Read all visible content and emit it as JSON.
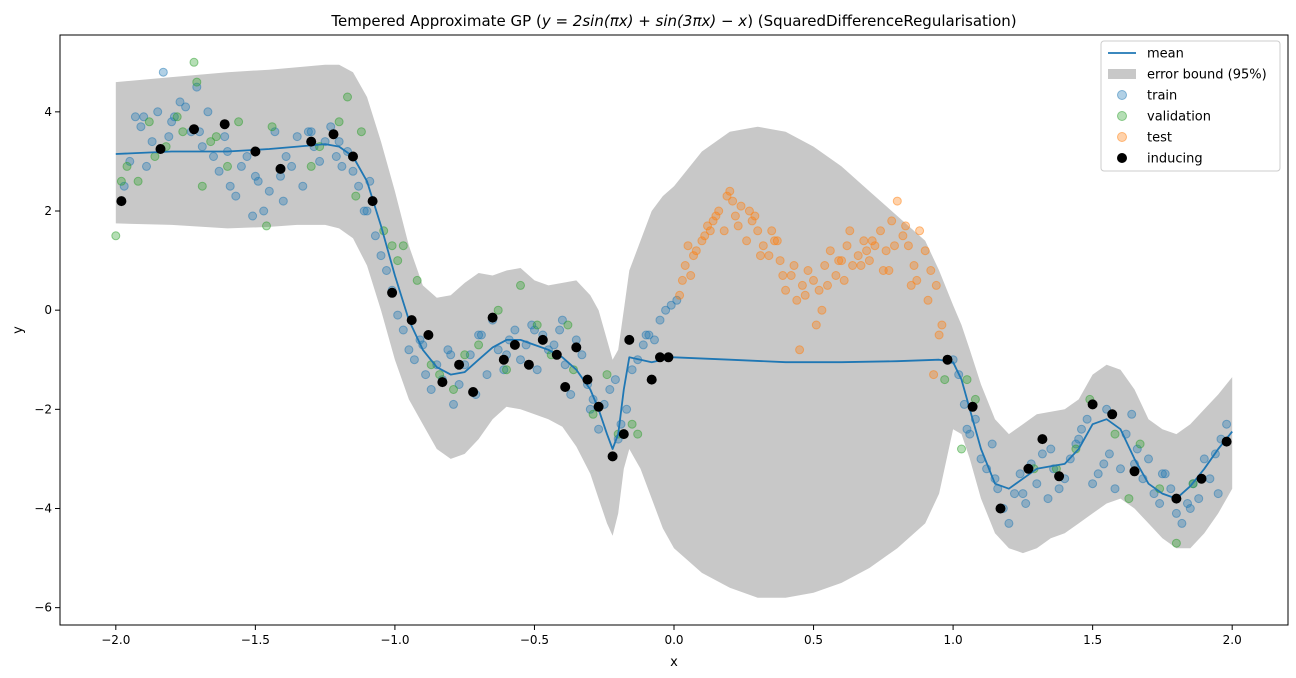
{
  "chart_data": {
    "type": "scatter",
    "title": "Tempered Approximate GP ($y = 2\\sin(\\pi x) + \\sin(3\\pi x) - x$) (SquaredDifferenceRegularisation)",
    "title_parts": {
      "prefix": "Tempered Approximate GP (",
      "equation": "y = 2sin(πx) + sin(3πx) − x",
      "suffix": ") (SquaredDifferenceRegularisation)"
    },
    "xlabel": "x",
    "ylabel": "y",
    "xlim": [
      -2.2,
      2.2
    ],
    "ylim": [
      -6.35,
      5.55
    ],
    "xticks": [
      -2.0,
      -1.5,
      -1.0,
      -0.5,
      0.0,
      0.5,
      1.0,
      1.5,
      2.0
    ],
    "xtick_labels": [
      "−2.0",
      "−1.5",
      "−1.0",
      "−0.5",
      "0.0",
      "0.5",
      "1.0",
      "1.5",
      "2.0"
    ],
    "yticks": [
      -6,
      -4,
      -2,
      0,
      2,
      4
    ],
    "ytick_labels": [
      "−6",
      "−4",
      "−2",
      "0",
      "2",
      "4"
    ],
    "grid": false,
    "legend_position": "top-right",
    "legend": [
      {
        "key": "mean",
        "label": "mean"
      },
      {
        "key": "band",
        "label": "error bound (95%)"
      },
      {
        "key": "train",
        "label": "train"
      },
      {
        "key": "validation",
        "label": "validation"
      },
      {
        "key": "test",
        "label": "test"
      },
      {
        "key": "inducing",
        "label": "inducing"
      }
    ],
    "colors": {
      "mean": "#1f77b4",
      "band": "#c8c8c8",
      "train": "#1f77b4",
      "validation": "#2ca02c",
      "test": "#ff7f0e",
      "inducing": "#000000"
    },
    "mean": {
      "x": [
        -2.0,
        -1.8,
        -1.6,
        -1.45,
        -1.35,
        -1.25,
        -1.2,
        -1.15,
        -1.1,
        -1.05,
        -1.0,
        -0.95,
        -0.9,
        -0.85,
        -0.8,
        -0.75,
        -0.7,
        -0.65,
        -0.6,
        -0.55,
        -0.5,
        -0.45,
        -0.4,
        -0.35,
        -0.3,
        -0.27,
        -0.24,
        -0.22,
        -0.2,
        -0.18,
        -0.16,
        -0.12,
        -0.08,
        -0.04,
        0.0,
        0.2,
        0.4,
        0.6,
        0.8,
        0.95,
        1.0,
        1.03,
        1.06,
        1.1,
        1.15,
        1.2,
        1.25,
        1.3,
        1.35,
        1.4,
        1.45,
        1.5,
        1.55,
        1.6,
        1.65,
        1.7,
        1.75,
        1.8,
        1.85,
        1.9,
        1.95,
        2.0
      ],
      "y": [
        3.15,
        3.2,
        3.2,
        3.25,
        3.3,
        3.35,
        3.3,
        3.1,
        2.6,
        1.7,
        0.7,
        -0.2,
        -0.8,
        -1.15,
        -1.3,
        -1.25,
        -1.0,
        -0.75,
        -0.6,
        -0.6,
        -0.7,
        -0.8,
        -0.95,
        -1.2,
        -1.6,
        -2.0,
        -2.5,
        -2.8,
        -2.5,
        -1.6,
        -0.95,
        -1.0,
        -1.05,
        -1.0,
        -0.95,
        -1.0,
        -1.05,
        -1.05,
        -1.03,
        -1.0,
        -1.05,
        -1.4,
        -2.0,
        -2.8,
        -3.5,
        -3.6,
        -3.4,
        -3.2,
        -3.15,
        -3.1,
        -2.8,
        -2.3,
        -2.2,
        -2.4,
        -3.0,
        -3.5,
        -3.7,
        -3.8,
        -3.55,
        -3.2,
        -2.8,
        -2.45
      ]
    },
    "band": {
      "x": [
        -2.0,
        -1.8,
        -1.6,
        -1.45,
        -1.35,
        -1.25,
        -1.2,
        -1.15,
        -1.1,
        -1.05,
        -1.0,
        -0.95,
        -0.9,
        -0.85,
        -0.8,
        -0.75,
        -0.7,
        -0.65,
        -0.6,
        -0.55,
        -0.5,
        -0.45,
        -0.4,
        -0.35,
        -0.3,
        -0.27,
        -0.24,
        -0.22,
        -0.2,
        -0.18,
        -0.16,
        -0.12,
        -0.08,
        -0.04,
        0.0,
        0.1,
        0.2,
        0.3,
        0.4,
        0.5,
        0.6,
        0.7,
        0.8,
        0.9,
        0.95,
        1.0,
        1.03,
        1.06,
        1.1,
        1.15,
        1.2,
        1.25,
        1.3,
        1.35,
        1.4,
        1.45,
        1.5,
        1.55,
        1.6,
        1.65,
        1.7,
        1.75,
        1.8,
        1.85,
        1.9,
        1.95,
        2.0
      ],
      "upper": [
        4.6,
        4.7,
        4.8,
        4.85,
        4.9,
        4.95,
        4.95,
        4.8,
        4.3,
        3.4,
        2.4,
        1.3,
        0.5,
        0.25,
        0.3,
        0.55,
        0.75,
        0.7,
        0.8,
        0.85,
        0.6,
        0.5,
        0.55,
        0.6,
        0.3,
        0.0,
        -0.6,
        -1.0,
        -0.8,
        0.0,
        0.8,
        1.4,
        2.0,
        2.3,
        2.5,
        3.2,
        3.6,
        3.7,
        3.6,
        3.3,
        2.9,
        2.4,
        1.9,
        1.4,
        0.8,
        0.1,
        -0.3,
        -0.8,
        -1.5,
        -2.2,
        -2.5,
        -2.3,
        -2.1,
        -2.05,
        -2.0,
        -1.8,
        -1.3,
        -1.1,
        -1.2,
        -1.6,
        -2.2,
        -2.4,
        -2.5,
        -2.3,
        -2.0,
        -1.7,
        -1.35
      ],
      "lower": [
        1.75,
        1.72,
        1.65,
        1.68,
        1.72,
        1.72,
        1.65,
        1.45,
        0.9,
        0.0,
        -1.0,
        -1.8,
        -2.3,
        -2.8,
        -3.0,
        -2.9,
        -2.6,
        -2.2,
        -1.95,
        -2.0,
        -2.1,
        -2.2,
        -2.35,
        -2.75,
        -3.3,
        -3.8,
        -4.3,
        -4.55,
        -4.1,
        -3.2,
        -2.8,
        -3.2,
        -3.8,
        -4.4,
        -4.8,
        -5.3,
        -5.6,
        -5.8,
        -5.8,
        -5.7,
        -5.5,
        -5.2,
        -4.8,
        -4.3,
        -3.7,
        -2.4,
        -2.5,
        -3.0,
        -3.8,
        -4.5,
        -4.8,
        -4.9,
        -4.8,
        -4.6,
        -4.5,
        -4.3,
        -4.1,
        -3.9,
        -3.8,
        -4.0,
        -4.3,
        -4.6,
        -4.8,
        -4.8,
        -4.5,
        -4.1,
        -3.6
      ]
    },
    "inducing": {
      "x": [
        -1.98,
        -1.84,
        -1.72,
        -1.61,
        -1.5,
        -1.41,
        -1.3,
        -1.22,
        -1.15,
        -1.08,
        -1.01,
        -0.94,
        -0.88,
        -0.83,
        -0.77,
        -0.72,
        -0.65,
        -0.61,
        -0.57,
        -0.52,
        -0.47,
        -0.42,
        -0.39,
        -0.35,
        -0.31,
        -0.27,
        -0.22,
        -0.18,
        -0.16,
        -0.08,
        -0.05,
        -0.02,
        0.98,
        1.07,
        1.17,
        1.27,
        1.32,
        1.38,
        1.5,
        1.57,
        1.65,
        1.8,
        1.89,
        1.98
      ],
      "y": [
        2.2,
        3.25,
        3.65,
        3.75,
        3.2,
        2.85,
        3.4,
        3.55,
        3.1,
        2.2,
        0.35,
        -0.2,
        -0.5,
        -1.45,
        -1.1,
        -1.65,
        -0.15,
        -1.0,
        -0.7,
        -1.1,
        -0.6,
        -0.9,
        -1.55,
        -0.75,
        -1.4,
        -1.95,
        -2.95,
        -2.5,
        -0.6,
        -1.4,
        -0.95,
        -0.95,
        -1.0,
        -1.95,
        -4.0,
        -3.2,
        -2.6,
        -3.35,
        -1.9,
        -2.1,
        -3.25,
        -3.8,
        -3.4,
        -2.65
      ]
    },
    "train": {
      "x": [
        -1.97,
        -1.95,
        -1.93,
        -1.91,
        -1.89,
        -1.87,
        -1.85,
        -1.83,
        -1.81,
        -1.79,
        -1.77,
        -1.75,
        -1.73,
        -1.71,
        -1.69,
        -1.67,
        -1.65,
        -1.63,
        -1.61,
        -1.59,
        -1.57,
        -1.55,
        -1.53,
        -1.51,
        -1.49,
        -1.47,
        -1.45,
        -1.43,
        -1.41,
        -1.39,
        -1.37,
        -1.35,
        -1.33,
        -1.31,
        -1.29,
        -1.27,
        -1.25,
        -1.23,
        -1.21,
        -1.19,
        -1.17,
        -1.15,
        -1.13,
        -1.11,
        -1.09,
        -1.07,
        -1.05,
        -1.03,
        -1.01,
        -0.99,
        -0.97,
        -0.95,
        -0.93,
        -0.91,
        -0.89,
        -0.87,
        -0.85,
        -0.83,
        -0.81,
        -0.79,
        -0.77,
        -0.75,
        -0.73,
        -0.71,
        -0.69,
        -0.67,
        -0.65,
        -0.63,
        -0.61,
        -0.59,
        -0.57,
        -0.55,
        -0.53,
        -0.51,
        -0.49,
        -0.47,
        -0.45,
        -0.43,
        -0.41,
        -0.39,
        -0.37,
        -0.35,
        -0.33,
        -0.31,
        -0.29,
        -0.27,
        -0.25,
        -0.23,
        -0.21,
        -0.19,
        -0.17,
        -0.15,
        -0.13,
        -0.11,
        -0.09,
        -0.07,
        -0.05,
        -0.03,
        -0.01,
        0.01,
        1.0,
        1.02,
        1.04,
        1.06,
        1.08,
        1.1,
        1.12,
        1.14,
        1.16,
        1.18,
        1.2,
        1.22,
        1.24,
        1.26,
        1.28,
        1.3,
        1.32,
        1.34,
        1.36,
        1.38,
        1.4,
        1.42,
        1.44,
        1.46,
        1.48,
        1.5,
        1.52,
        1.54,
        1.56,
        1.58,
        1.6,
        1.62,
        1.64,
        1.66,
        1.68,
        1.7,
        1.72,
        1.74,
        1.76,
        1.78,
        1.8,
        1.82,
        1.84,
        1.86,
        1.88,
        1.9,
        1.92,
        1.94,
        1.96,
        1.98,
        -1.9,
        -1.8,
        -1.7,
        -1.6,
        -1.5,
        -1.4,
        -1.3,
        -1.2,
        -1.1,
        -0.9,
        -0.8,
        -0.7,
        -0.6,
        -0.5,
        -0.4,
        -0.3,
        -0.2,
        -0.1,
        1.05,
        1.15,
        1.25,
        1.35,
        1.45,
        1.55,
        1.65,
        1.75,
        1.85,
        1.95
      ],
      "y": [
        2.5,
        3.0,
        3.9,
        3.7,
        2.9,
        3.4,
        4.0,
        4.8,
        3.5,
        3.9,
        4.2,
        4.1,
        3.6,
        4.5,
        3.3,
        4.0,
        3.1,
        2.8,
        3.5,
        2.5,
        2.3,
        2.9,
        3.1,
        1.9,
        2.6,
        2.0,
        2.4,
        3.6,
        2.7,
        3.1,
        2.9,
        3.5,
        2.5,
        3.6,
        3.3,
        3.0,
        3.4,
        3.7,
        3.1,
        2.9,
        3.2,
        2.8,
        2.5,
        2.0,
        2.6,
        1.5,
        1.1,
        0.8,
        0.4,
        -0.1,
        -0.4,
        -0.8,
        -1.0,
        -0.6,
        -1.3,
        -1.6,
        -1.1,
        -1.4,
        -0.8,
        -1.9,
        -1.5,
        -1.1,
        -0.9,
        -1.7,
        -0.5,
        -1.3,
        -0.2,
        -0.8,
        -1.2,
        -0.6,
        -0.4,
        -1.0,
        -0.7,
        -0.3,
        -1.2,
        -0.5,
        -0.8,
        -0.7,
        -0.4,
        -1.1,
        -1.7,
        -0.6,
        -0.9,
        -1.5,
        -1.8,
        -2.4,
        -1.9,
        -1.6,
        -1.4,
        -2.3,
        -2.0,
        -1.2,
        -1.0,
        -0.7,
        -0.5,
        -0.6,
        -0.2,
        0.0,
        0.1,
        0.2,
        -1.0,
        -1.3,
        -1.9,
        -2.5,
        -2.2,
        -3.0,
        -3.2,
        -2.7,
        -3.6,
        -4.0,
        -4.3,
        -3.7,
        -3.3,
        -3.9,
        -3.1,
        -3.5,
        -2.9,
        -3.8,
        -3.2,
        -3.6,
        -3.4,
        -3.0,
        -2.7,
        -2.4,
        -2.2,
        -3.5,
        -3.3,
        -3.1,
        -2.9,
        -3.6,
        -3.2,
        -2.5,
        -2.1,
        -2.8,
        -3.4,
        -3.0,
        -3.7,
        -3.9,
        -3.3,
        -3.6,
        -4.1,
        -4.3,
        -3.9,
        -3.5,
        -3.8,
        -3.0,
        -3.4,
        -2.9,
        -2.6,
        -2.3,
        3.9,
        3.8,
        3.6,
        3.2,
        2.7,
        2.2,
        3.6,
        3.4,
        2.0,
        -0.7,
        -0.9,
        -0.5,
        -0.9,
        -0.4,
        -0.2,
        -2.0,
        -2.6,
        -0.5,
        -2.4,
        -3.4,
        -3.7,
        -2.8,
        -2.6,
        -2.0,
        -3.1,
        -3.3,
        -4.0,
        -3.7
      ]
    },
    "validation": {
      "x": [
        -2.0,
        -1.98,
        -1.96,
        -1.92,
        -1.88,
        -1.86,
        -1.82,
        -1.78,
        -1.76,
        -1.72,
        -1.71,
        -1.69,
        -1.66,
        -1.64,
        -1.6,
        -1.56,
        -1.46,
        -1.44,
        -1.3,
        -1.27,
        -1.2,
        -1.17,
        -1.14,
        -1.12,
        -1.04,
        -1.01,
        -0.99,
        -0.97,
        -0.92,
        -0.87,
        -0.84,
        -0.79,
        -0.75,
        -0.7,
        -0.63,
        -0.6,
        -0.55,
        -0.49,
        -0.44,
        -0.38,
        -0.36,
        -0.29,
        -0.24,
        -0.2,
        -0.15,
        -0.13,
        0.97,
        1.03,
        1.05,
        1.08,
        1.29,
        1.37,
        1.44,
        1.49,
        1.58,
        1.63,
        1.67,
        1.74,
        1.8,
        1.86
      ],
      "y": [
        1.5,
        2.6,
        2.9,
        2.6,
        3.8,
        3.1,
        3.3,
        3.9,
        3.6,
        5.0,
        4.6,
        2.5,
        3.4,
        3.5,
        2.9,
        3.8,
        1.7,
        3.7,
        2.9,
        3.3,
        3.8,
        4.3,
        2.3,
        3.6,
        1.6,
        1.3,
        1.0,
        1.3,
        0.6,
        -1.1,
        -1.3,
        -1.6,
        -0.9,
        -0.7,
        0.0,
        -1.2,
        0.5,
        -0.3,
        -0.9,
        -0.3,
        -1.2,
        -2.1,
        -1.3,
        -2.5,
        -2.3,
        -2.5,
        -1.4,
        -2.8,
        -1.4,
        -1.8,
        -3.2,
        -3.2,
        -2.8,
        -1.8,
        -2.5,
        -3.8,
        -2.7,
        -3.6,
        -4.7,
        -3.5
      ]
    },
    "test": {
      "x": [
        0.02,
        0.04,
        0.06,
        0.08,
        0.1,
        0.12,
        0.14,
        0.16,
        0.18,
        0.2,
        0.22,
        0.24,
        0.26,
        0.28,
        0.3,
        0.32,
        0.34,
        0.36,
        0.38,
        0.4,
        0.42,
        0.44,
        0.46,
        0.48,
        0.5,
        0.52,
        0.54,
        0.56,
        0.58,
        0.6,
        0.62,
        0.64,
        0.66,
        0.68,
        0.7,
        0.72,
        0.74,
        0.76,
        0.78,
        0.8,
        0.82,
        0.84,
        0.86,
        0.88,
        0.9,
        0.92,
        0.94,
        0.96,
        0.03,
        0.07,
        0.11,
        0.15,
        0.19,
        0.23,
        0.27,
        0.31,
        0.35,
        0.39,
        0.43,
        0.47,
        0.51,
        0.55,
        0.59,
        0.63,
        0.67,
        0.71,
        0.75,
        0.79,
        0.83,
        0.87,
        0.91,
        0.95,
        0.05,
        0.13,
        0.21,
        0.29,
        0.37,
        0.45,
        0.53,
        0.61,
        0.69,
        0.77,
        0.85,
        0.93
      ],
      "y": [
        0.3,
        0.9,
        0.7,
        1.2,
        1.4,
        1.7,
        1.8,
        2.0,
        1.6,
        2.4,
        1.9,
        2.1,
        1.4,
        1.8,
        1.6,
        1.3,
        1.1,
        1.4,
        1.0,
        0.4,
        0.7,
        0.2,
        0.5,
        0.8,
        0.6,
        0.4,
        0.9,
        1.2,
        0.7,
        1.0,
        1.3,
        0.9,
        1.1,
        1.4,
        1.0,
        1.3,
        1.6,
        1.2,
        1.8,
        2.2,
        1.5,
        1.3,
        0.9,
        1.6,
        1.2,
        0.8,
        0.5,
        -0.3,
        0.6,
        1.1,
        1.5,
        1.9,
        2.3,
        1.7,
        2.0,
        1.1,
        1.6,
        0.7,
        0.9,
        0.3,
        -0.3,
        0.5,
        1.0,
        1.6,
        0.9,
        1.4,
        0.8,
        1.3,
        1.7,
        0.6,
        0.2,
        -0.5,
        1.3,
        1.6,
        2.2,
        1.9,
        1.4,
        -0.8,
        0.0,
        0.6,
        1.2,
        0.8,
        0.5,
        -1.3
      ]
    }
  }
}
